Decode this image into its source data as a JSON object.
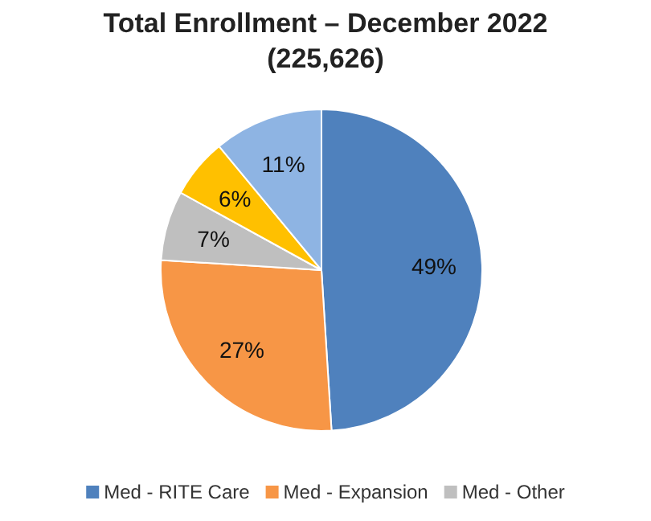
{
  "chart_data": {
    "type": "pie",
    "title": "Total Enrollment – December 2022",
    "subtitle": "(225,626)",
    "categories": [
      "Med - RITE Care",
      "Med - Expansion",
      "Med - Other",
      null,
      null
    ],
    "values": [
      49,
      27,
      7,
      6,
      11
    ],
    "value_labels": [
      "49%",
      "27%",
      "7%",
      "6%",
      "11%"
    ],
    "colors": [
      "#4f81bd",
      "#f79646",
      "#bfbfbf",
      "#ffc000",
      "#8eb4e3"
    ],
    "legend": "bottom"
  }
}
